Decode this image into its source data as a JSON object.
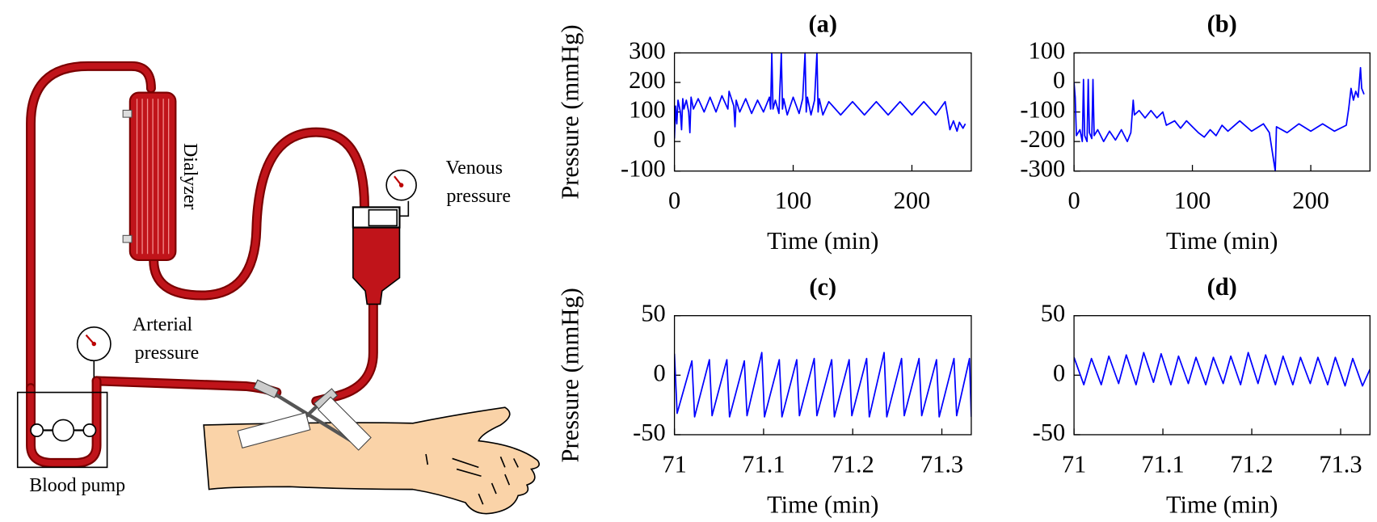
{
  "diagram": {
    "dialyzer": "Dialyzer",
    "venous_label": [
      "Venous",
      "pressure"
    ],
    "arterial_label": [
      "Arterial",
      "pressure"
    ],
    "pump_label": "Blood pump"
  },
  "chart_data": [
    {
      "type": "line",
      "title": "(a)",
      "x_label": "Time (min)",
      "y_label": "Pressure (mmHg)",
      "color": "#0000ff",
      "xlim": [
        0,
        250
      ],
      "xticks": [
        0,
        100,
        200
      ],
      "ylim": [
        -100,
        300
      ],
      "yticks": [
        -100,
        0,
        100,
        200,
        300
      ],
      "x": [
        0,
        1,
        2,
        3,
        5,
        6,
        7,
        8,
        10,
        12,
        13,
        14,
        16,
        20,
        25,
        30,
        35,
        40,
        45,
        46,
        50,
        51,
        52,
        55,
        60,
        65,
        70,
        75,
        80,
        81,
        82,
        83,
        85,
        88,
        90,
        91,
        92,
        95,
        100,
        105,
        108,
        110,
        111,
        112,
        115,
        118,
        120,
        121,
        122,
        125,
        130,
        140,
        150,
        160,
        170,
        180,
        190,
        200,
        210,
        220,
        228,
        230,
        232,
        235,
        238,
        240,
        243,
        245
      ],
      "values": [
        10,
        120,
        60,
        140,
        100,
        40,
        145,
        110,
        140,
        100,
        30,
        150,
        110,
        145,
        100,
        150,
        100,
        155,
        110,
        170,
        120,
        50,
        140,
        100,
        145,
        95,
        140,
        100,
        150,
        110,
        300,
        110,
        140,
        95,
        300,
        110,
        145,
        90,
        150,
        95,
        145,
        300,
        100,
        150,
        90,
        140,
        300,
        100,
        145,
        90,
        135,
        90,
        135,
        90,
        135,
        90,
        135,
        90,
        135,
        90,
        135,
        90,
        40,
        70,
        35,
        65,
        45,
        60
      ]
    },
    {
      "type": "line",
      "title": "(b)",
      "x_label": "Time (min)",
      "color": "#0000ff",
      "xlim": [
        0,
        250
      ],
      "xticks": [
        0,
        100,
        200
      ],
      "ylim": [
        -300,
        100
      ],
      "yticks": [
        -300,
        -200,
        -100,
        0,
        100
      ],
      "x": [
        0,
        1,
        2,
        5,
        7,
        8,
        9,
        11,
        12,
        13,
        15,
        16,
        17,
        20,
        25,
        30,
        35,
        40,
        45,
        48,
        50,
        51,
        55,
        60,
        65,
        70,
        75,
        78,
        85,
        90,
        95,
        100,
        105,
        110,
        115,
        120,
        125,
        130,
        140,
        150,
        160,
        165,
        170,
        171,
        180,
        190,
        200,
        210,
        220,
        230,
        232,
        234,
        236,
        238,
        240,
        242,
        243,
        245
      ],
      "values": [
        0,
        -50,
        -180,
        -160,
        -200,
        10,
        -180,
        -200,
        10,
        -170,
        -190,
        10,
        -180,
        -160,
        -200,
        -165,
        -195,
        -160,
        -200,
        -170,
        -60,
        -110,
        -95,
        -120,
        -95,
        -120,
        -100,
        -145,
        -130,
        -155,
        -130,
        -150,
        -170,
        -185,
        -160,
        -180,
        -145,
        -165,
        -130,
        -165,
        -140,
        -170,
        -300,
        -150,
        -170,
        -140,
        -165,
        -140,
        -165,
        -145,
        -90,
        -20,
        -60,
        -30,
        -50,
        50,
        -20,
        -40
      ]
    },
    {
      "type": "line",
      "title": "(c)",
      "x_label": "Time (min)",
      "y_label": "Pressure (mmHg)",
      "color": "#0000ff",
      "xlim": [
        71,
        71.333
      ],
      "xticks": [
        71,
        71.1,
        71.2,
        71.3
      ],
      "ylim": [
        -50,
        50
      ],
      "yticks": [
        -50,
        0,
        50
      ],
      "x": [
        71,
        71.003,
        71.0196,
        71.0226,
        71.0392,
        71.0422,
        71.0588,
        71.0618,
        71.0784,
        71.0814,
        71.098,
        71.101,
        71.1176,
        71.1206,
        71.1372,
        71.1402,
        71.1568,
        71.1598,
        71.1764,
        71.1794,
        71.196,
        71.199,
        71.2156,
        71.2186,
        71.2352,
        71.2382,
        71.2548,
        71.2578,
        71.2744,
        71.2774,
        71.294,
        71.297,
        71.3136,
        71.3166,
        71.331,
        71.333
      ],
      "values": [
        18,
        -32,
        12,
        -35,
        13,
        -34,
        13,
        -35,
        12,
        -34,
        19,
        -35,
        13,
        -35,
        13,
        -34,
        14,
        -34,
        13,
        -35,
        13,
        -34,
        14,
        -35,
        19,
        -35,
        14,
        -34,
        14,
        -34,
        13,
        -35,
        14,
        -34,
        14,
        -35
      ]
    },
    {
      "type": "line",
      "title": "(d)",
      "x_label": "Time (min)",
      "color": "#0000ff",
      "xlim": [
        71,
        71.333
      ],
      "xticks": [
        71,
        71.1,
        71.2,
        71.3
      ],
      "ylim": [
        -50,
        50
      ],
      "yticks": [
        -50,
        0,
        50
      ],
      "x": [
        71,
        71.011,
        71.0196,
        71.0306,
        71.0392,
        71.0502,
        71.0588,
        71.0698,
        71.0784,
        71.0894,
        71.098,
        71.109,
        71.1176,
        71.1286,
        71.1372,
        71.1482,
        71.1568,
        71.1678,
        71.1764,
        71.1874,
        71.196,
        71.207,
        71.2156,
        71.2266,
        71.2352,
        71.2462,
        71.2548,
        71.2658,
        71.2744,
        71.2854,
        71.294,
        71.305,
        71.3136,
        71.3246,
        71.333
      ],
      "values": [
        15,
        -8,
        14,
        -8,
        16,
        -7,
        17,
        -8,
        19,
        -6,
        18,
        -8,
        16,
        -7,
        15,
        -8,
        15,
        -7,
        16,
        -8,
        19,
        -7,
        17,
        -8,
        16,
        -8,
        15,
        -7,
        15,
        -8,
        15,
        -9,
        14,
        -9,
        5
      ]
    }
  ]
}
